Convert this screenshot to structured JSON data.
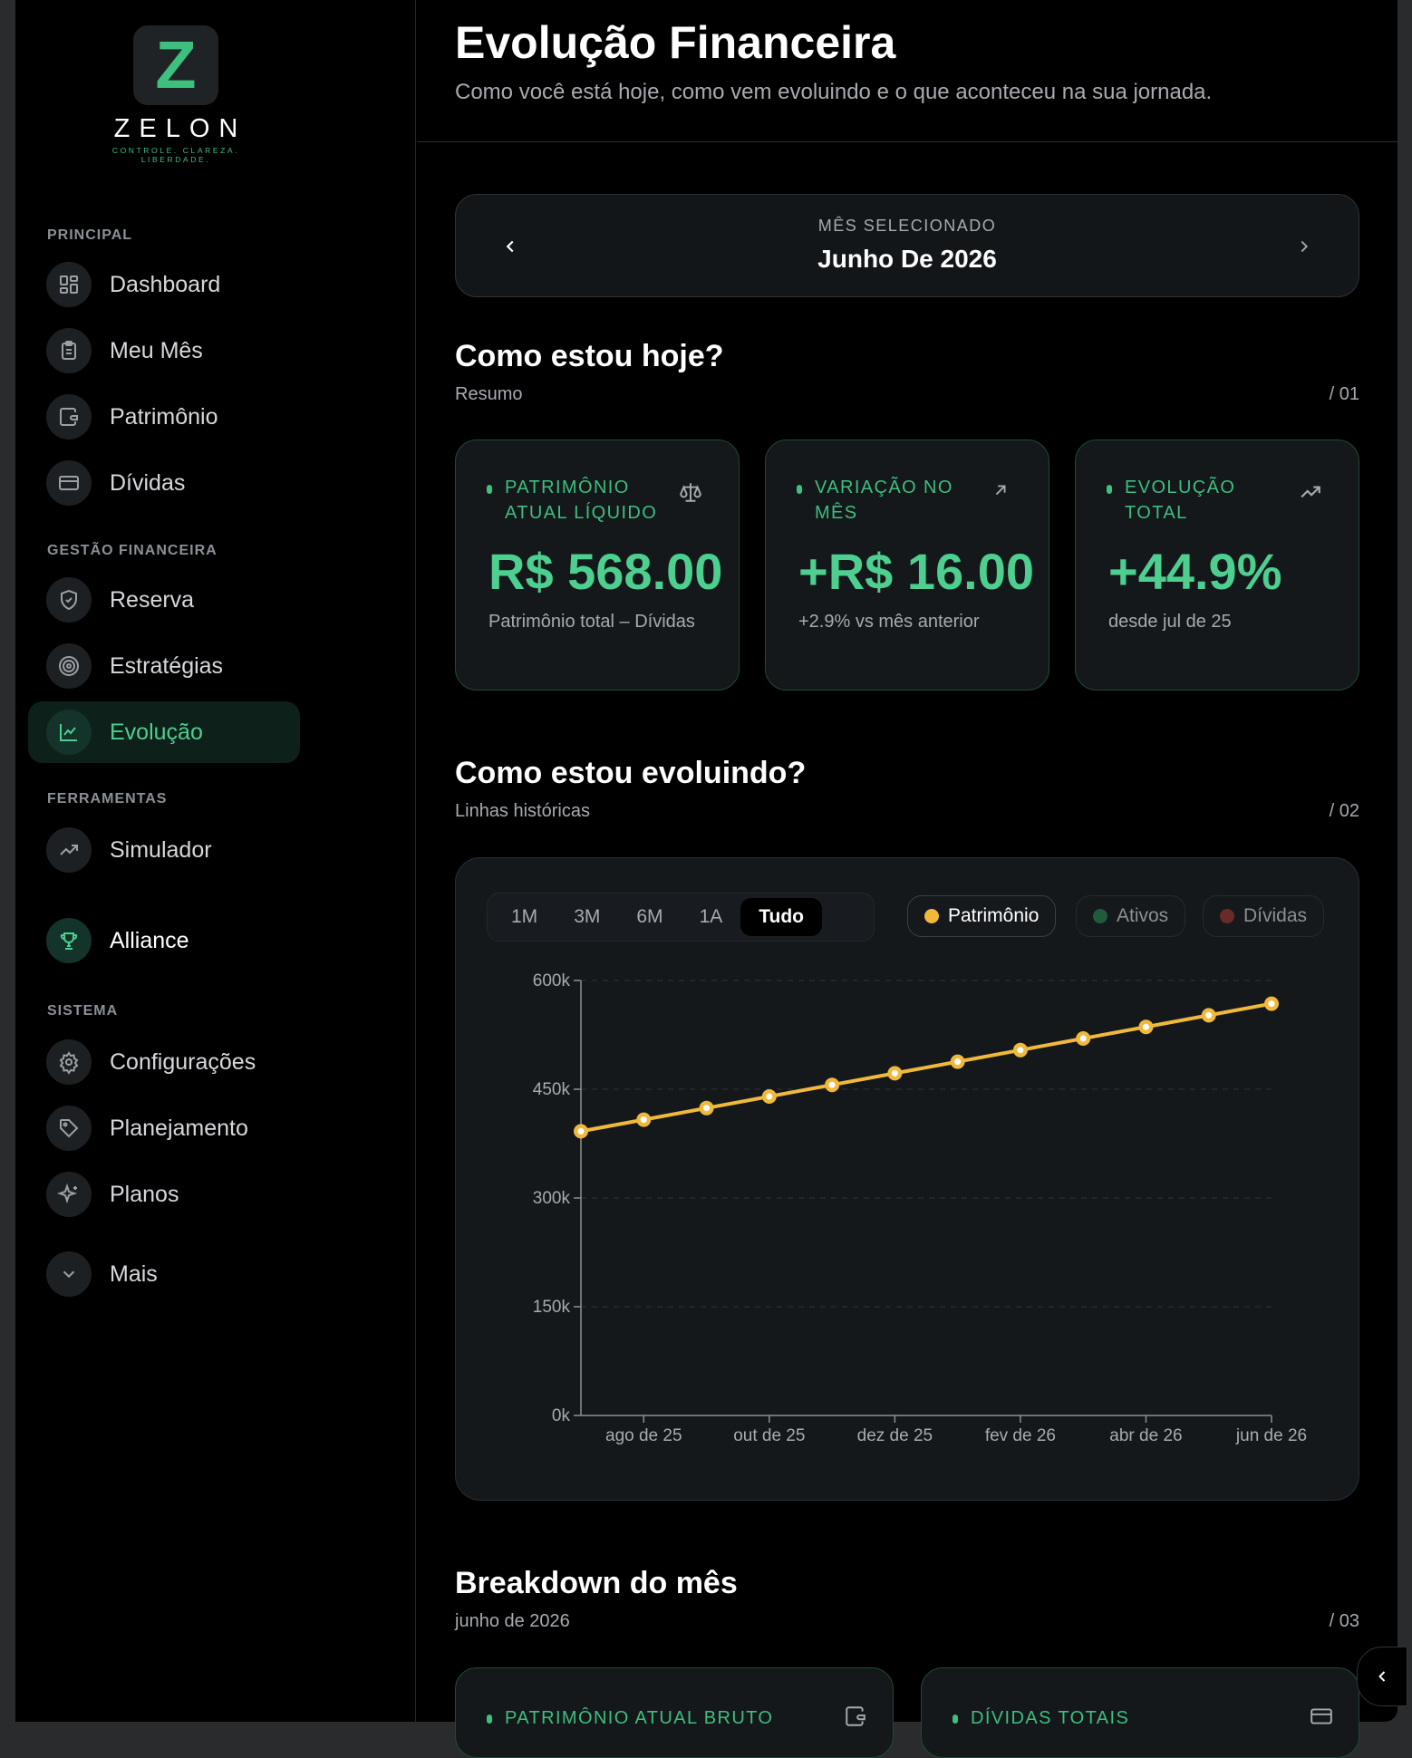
{
  "brand": {
    "wordmark": "ZELON",
    "tagline": "CONTROLE. CLAREZA. LIBERDADE.",
    "logo_letter": "Z",
    "accent": "#3dbf7e"
  },
  "sidebar": {
    "sections": [
      {
        "title": "PRINCIPAL",
        "items": [
          {
            "label": "Dashboard",
            "icon": "dashboard-icon"
          },
          {
            "label": "Meu Mês",
            "icon": "clipboard-icon"
          },
          {
            "label": "Patrimônio",
            "icon": "wallet-icon"
          },
          {
            "label": "Dívidas",
            "icon": "credit-card-icon"
          }
        ]
      },
      {
        "title": "GESTÃO FINANCEIRA",
        "items": [
          {
            "label": "Reserva",
            "icon": "shield-icon"
          },
          {
            "label": "Estratégias",
            "icon": "target-icon"
          },
          {
            "label": "Evolução",
            "icon": "line-chart-icon",
            "active": true
          }
        ]
      },
      {
        "title": "FERRAMENTAS",
        "items": [
          {
            "label": "Simulador",
            "icon": "trending-up-icon"
          },
          {
            "label": "Alliance",
            "icon": "trophy-icon"
          }
        ]
      },
      {
        "title": "SISTEMA",
        "items": [
          {
            "label": "Configurações",
            "icon": "gear-icon"
          },
          {
            "label": "Planejamento",
            "icon": "tag-icon"
          },
          {
            "label": "Planos",
            "icon": "sparkles-icon"
          },
          {
            "label": "Mais",
            "icon": "chevron-down-icon"
          }
        ]
      }
    ]
  },
  "header": {
    "title": "Evolução Financeira",
    "subtitle": "Como você está hoje, como vem evoluindo e o que aconteceu na sua jornada."
  },
  "month_selector": {
    "caption": "MÊS SELECIONADO",
    "value": "Junho De 2026"
  },
  "section_today": {
    "title": "Como estou hoje?",
    "subtitle": "Resumo",
    "number": "/ 01",
    "cards": [
      {
        "label": "PATRIMÔNIO ATUAL LÍQUIDO",
        "value": "R$ 568.00",
        "note": "Patrimônio total – Dívidas",
        "icon": "scale-icon"
      },
      {
        "label": "VARIAÇÃO NO MÊS",
        "value": "+R$ 16.00",
        "note": "+2.9% vs mês anterior",
        "icon": "arrow-up-right-icon"
      },
      {
        "label": "EVOLUÇÃO TOTAL",
        "value": "+44.9%",
        "note": "desde jul de 25",
        "icon": "trending-up-icon"
      }
    ]
  },
  "section_evolution": {
    "title": "Como estou evoluindo?",
    "subtitle": "Linhas históricas",
    "number": "/ 02",
    "range_tabs": [
      "1M",
      "3M",
      "6M",
      "1A",
      "Tudo"
    ],
    "active_range": "Tudo",
    "legend": [
      {
        "label": "Patrimônio",
        "color": "#f0b93a",
        "active": true
      },
      {
        "label": "Ativos",
        "color": "#1f5c3c",
        "active": false
      },
      {
        "label": "Dívidas",
        "color": "#6b2a2a",
        "active": false
      }
    ]
  },
  "chart_data": {
    "type": "line",
    "series": [
      {
        "name": "Patrimônio",
        "color": "#f0b93a",
        "x": [
          "jul de 25",
          "ago de 25",
          "set de 25",
          "out de 25",
          "nov de 25",
          "dez de 25",
          "jan de 26",
          "fev de 26",
          "mar de 26",
          "abr de 26",
          "mai de 26",
          "jun de 26"
        ],
        "values": [
          392000,
          408000,
          424000,
          440000,
          456000,
          472000,
          488000,
          504000,
          520000,
          536000,
          552000,
          568000
        ]
      }
    ],
    "x_tick_labels": [
      "ago de 25",
      "out de 25",
      "dez de 25",
      "fev de 26",
      "abr de 26",
      "jun de 26"
    ],
    "y_ticks": [
      0,
      150000,
      300000,
      450000,
      600000
    ],
    "y_tick_labels": [
      "0k",
      "150k",
      "300k",
      "450k",
      "600k"
    ],
    "ylim": [
      0,
      600000
    ],
    "grid": true
  },
  "section_breakdown": {
    "title": "Breakdown do mês",
    "subtitle": "junho de 2026",
    "number": "/ 03",
    "cards": [
      {
        "label": "PATRIMÔNIO ATUAL BRUTO",
        "icon": "wallet-icon"
      },
      {
        "label": "DÍVIDAS TOTAIS",
        "icon": "credit-card-icon"
      }
    ]
  }
}
